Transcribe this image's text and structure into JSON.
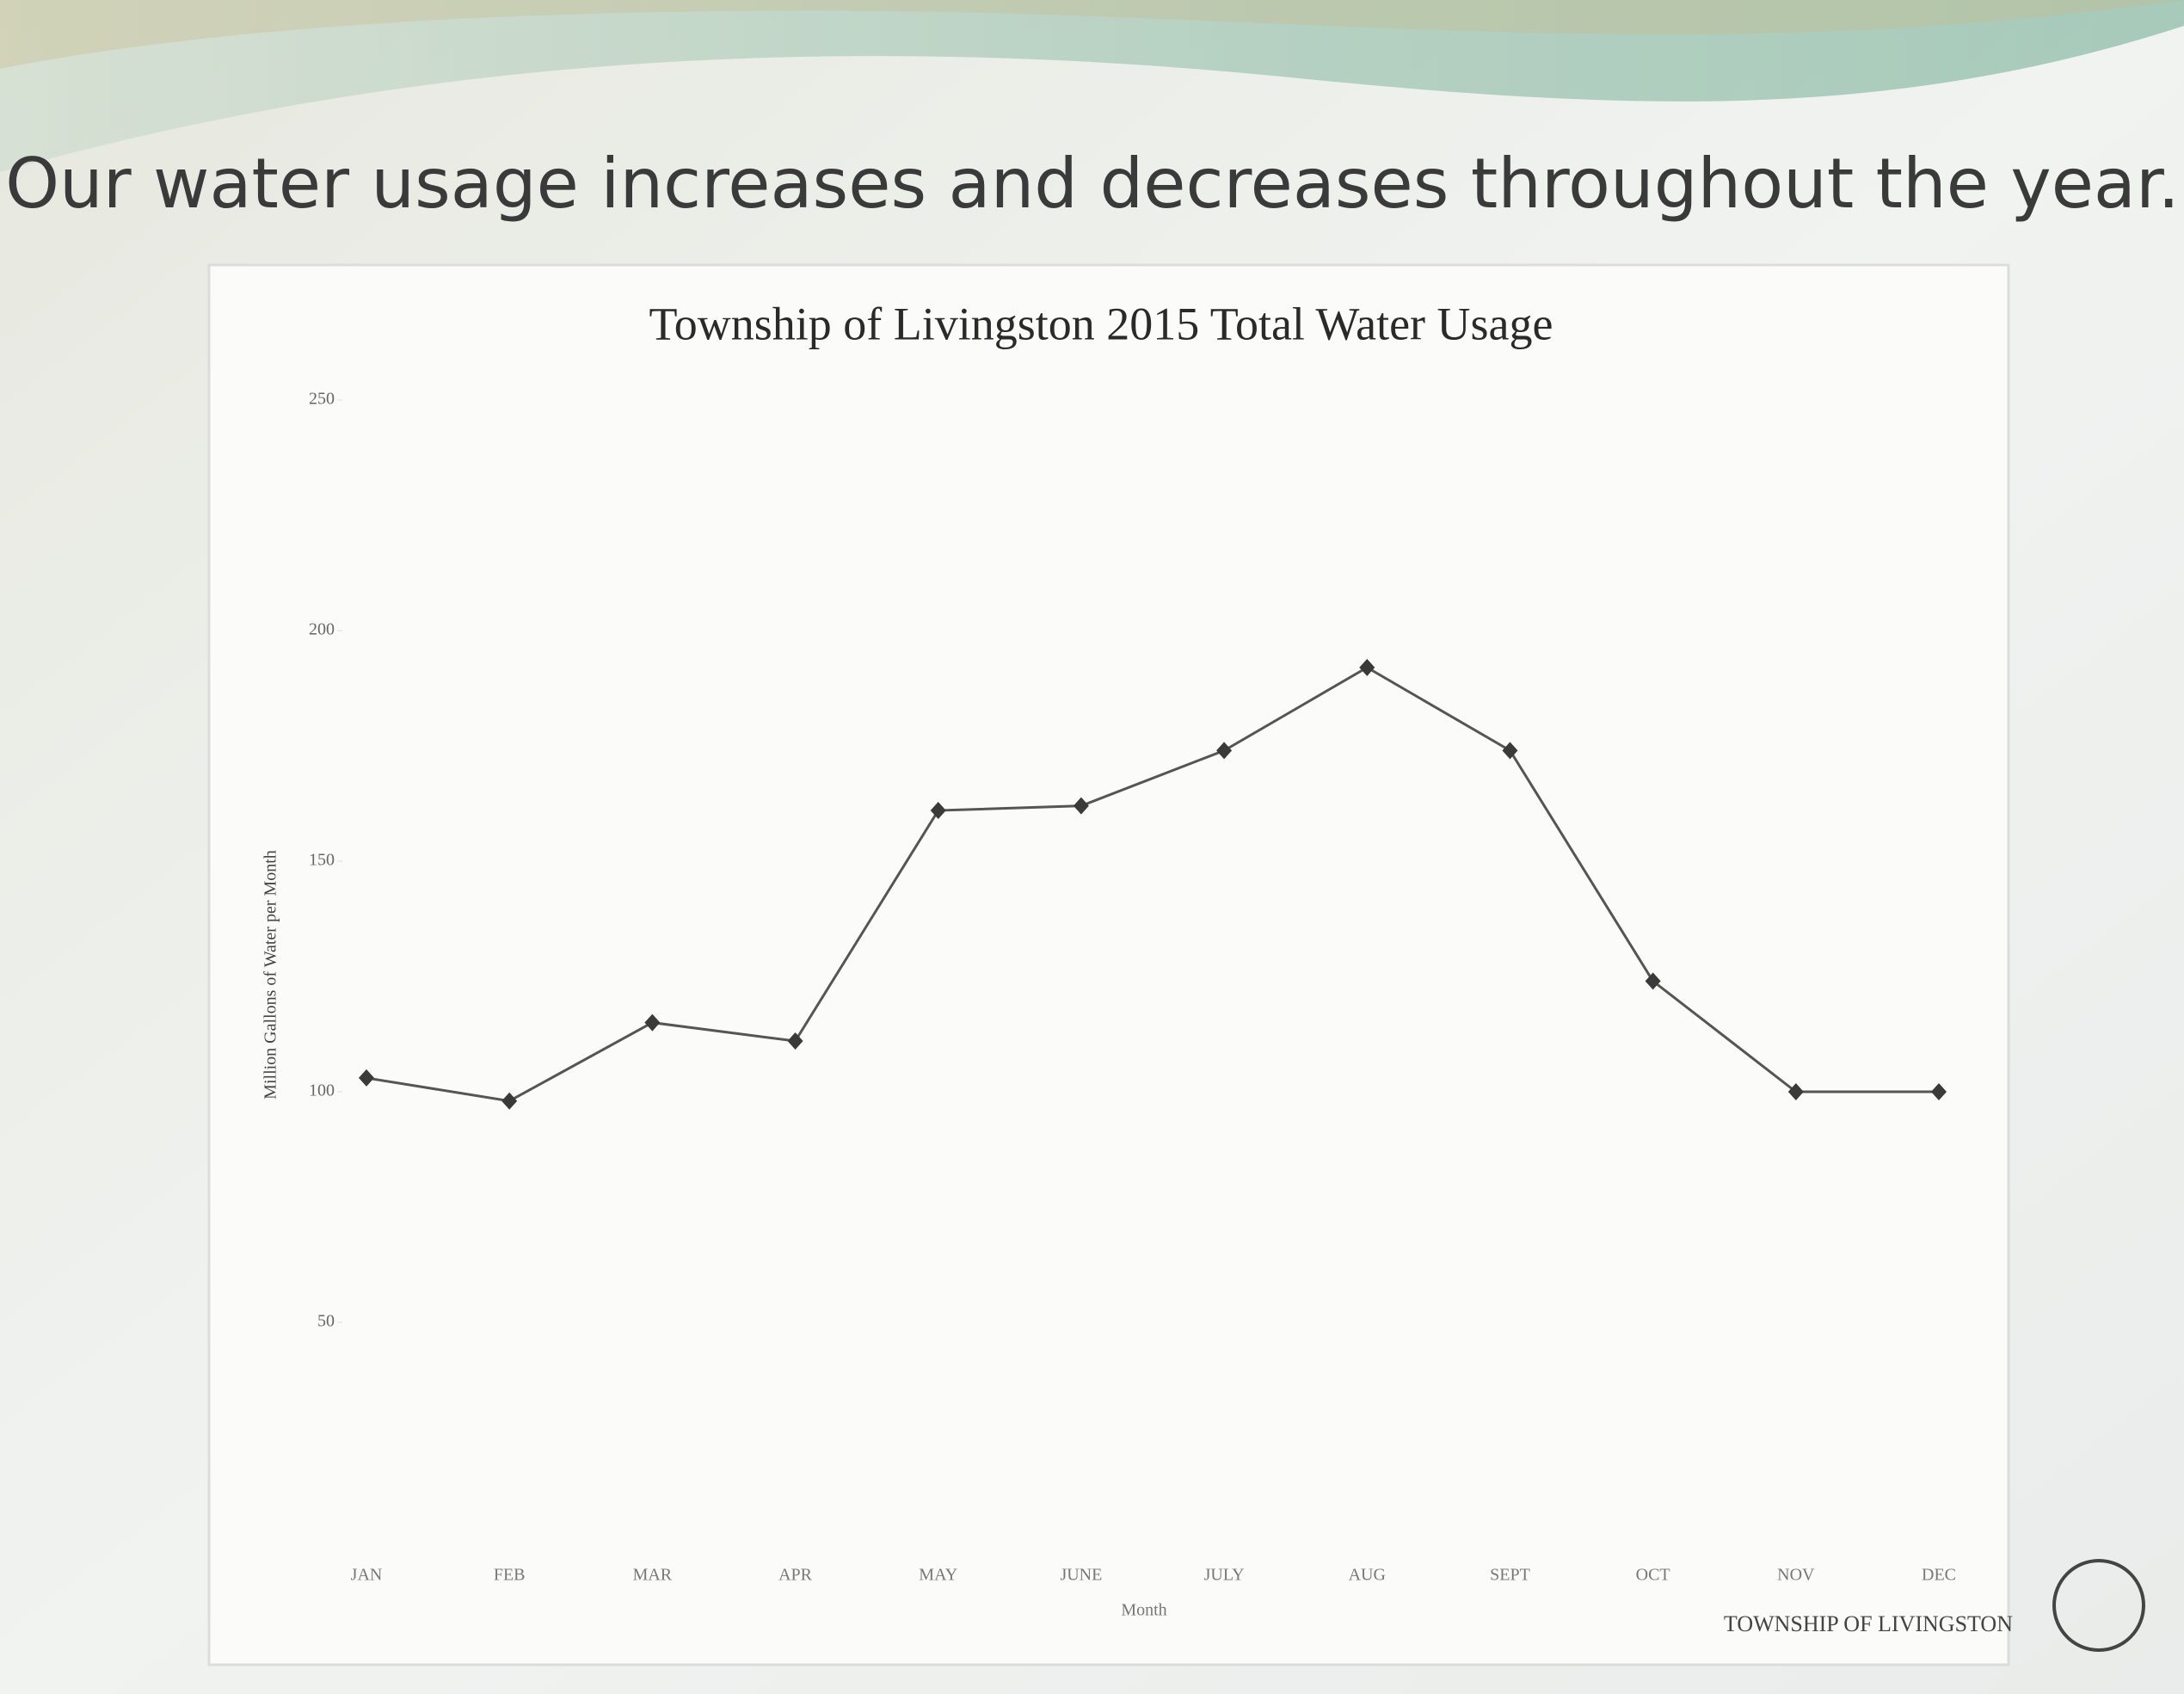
{
  "slide": {
    "title": "Our water usage increases and decreases throughout the year.",
    "footer": "TOWNSHIP OF LIVINGSTON"
  },
  "chart_data": {
    "type": "line",
    "title": "Township of Livingston 2015 Total Water Usage",
    "x_label": "Month",
    "y_label": "Million Gallons of Water per Month",
    "categories": [
      "JAN",
      "FEB",
      "MAR",
      "APR",
      "MAY",
      "JUNE",
      "JULY",
      "AUG",
      "SEPT",
      "OCT",
      "NOV",
      "DEC"
    ],
    "series": [
      {
        "name": "Total Water Usage",
        "color": "#555555",
        "values": [
          103,
          98,
          115,
          111,
          161,
          162,
          174,
          192,
          174,
          124,
          100,
          100
        ]
      }
    ],
    "ylim": [
      0,
      250
    ],
    "yticks": [
      50,
      100,
      150,
      200,
      250
    ],
    "grid": false
  }
}
